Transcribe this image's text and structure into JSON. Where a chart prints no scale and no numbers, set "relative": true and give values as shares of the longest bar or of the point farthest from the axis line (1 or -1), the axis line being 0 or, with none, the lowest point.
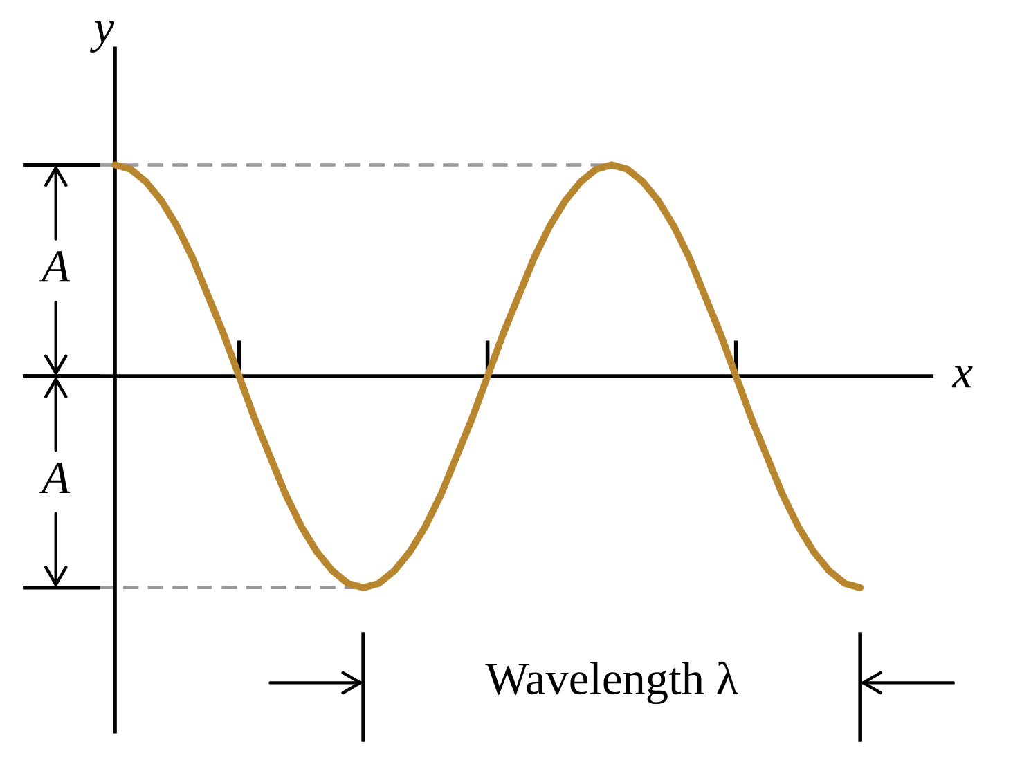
{
  "chart_data": {
    "type": "line",
    "relative": true,
    "xlabel": "x",
    "ylabel": "y",
    "categories": [
      null,
      null,
      null,
      null,
      null,
      null,
      null,
      null,
      null,
      null,
      null,
      null,
      null,
      null,
      null,
      null,
      null,
      null,
      null,
      null,
      null,
      null,
      null,
      null,
      null,
      null,
      null,
      null,
      null,
      null,
      null,
      null,
      null,
      null,
      null,
      null,
      null,
      null,
      null,
      null,
      null,
      null,
      null,
      null,
      null,
      null,
      null,
      null,
      null
    ],
    "series": [
      {
        "color": "#b8862e",
        "values": [
          1,
          0.98,
          0.92,
          0.83,
          0.71,
          0.56,
          0.38,
          0.2,
          0,
          -0.2,
          -0.38,
          -0.56,
          -0.71,
          -0.83,
          -0.92,
          -0.98,
          -1,
          -0.98,
          -0.92,
          -0.83,
          -0.71,
          -0.56,
          -0.38,
          -0.2,
          0,
          0.2,
          0.38,
          0.56,
          0.71,
          0.83,
          0.92,
          0.98,
          1,
          0.98,
          0.92,
          0.83,
          0.71,
          0.56,
          0.38,
          0.2,
          0,
          -0.2,
          -0.38,
          -0.56,
          -0.71,
          -0.83,
          -0.92,
          -0.98,
          -1
        ]
      }
    ],
    "ref_lines": [
      {
        "axis": "y",
        "value": 1,
        "color": "#999999",
        "line_style": "dashed"
      },
      {
        "axis": "y",
        "value": -1,
        "color": "#999999",
        "line_style": "dashed"
      }
    ],
    "annotations": [
      "A",
      "A",
      "Wavelength λ"
    ]
  }
}
